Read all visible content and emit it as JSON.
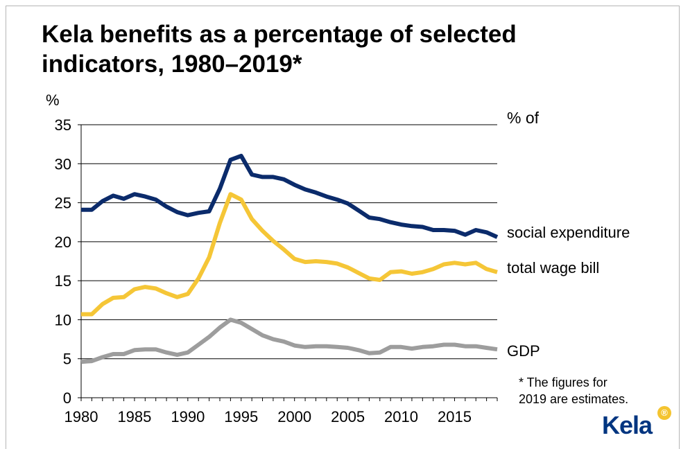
{
  "chart_data": {
    "type": "line",
    "title": "Kela benefits as a percentage of selected indicators, 1980–2019*",
    "ylabel": "%",
    "ylim": [
      0,
      35
    ],
    "yticks": [
      "0",
      "5",
      "10",
      "15",
      "20",
      "25",
      "30",
      "35"
    ],
    "xlim": [
      1980,
      2019
    ],
    "xticks": [
      "1980",
      "1985",
      "1990",
      "1995",
      "2000",
      "2005",
      "2010",
      "2015"
    ],
    "legend_heading": "% of",
    "footnote": [
      "* The figures for",
      "2019 are estimates."
    ],
    "x": [
      1980,
      1981,
      1982,
      1983,
      1984,
      1985,
      1986,
      1987,
      1988,
      1989,
      1990,
      1991,
      1992,
      1993,
      1994,
      1995,
      1996,
      1997,
      1998,
      1999,
      2000,
      2001,
      2002,
      2003,
      2004,
      2005,
      2006,
      2007,
      2008,
      2009,
      2010,
      2011,
      2012,
      2013,
      2014,
      2015,
      2016,
      2017,
      2018,
      2019
    ],
    "series": [
      {
        "name": "social expenditure",
        "color": "#0b2b6b",
        "values": [
          24.1,
          24.1,
          25.2,
          25.9,
          25.5,
          26.1,
          25.8,
          25.4,
          24.5,
          23.8,
          23.4,
          23.7,
          23.9,
          26.8,
          30.5,
          31.0,
          28.6,
          28.3,
          28.3,
          28.0,
          27.3,
          26.7,
          26.3,
          25.8,
          25.4,
          24.9,
          24.0,
          23.1,
          22.9,
          22.5,
          22.2,
          22.0,
          21.9,
          21.5,
          21.5,
          21.4,
          20.9,
          21.5,
          21.2,
          20.6
        ]
      },
      {
        "name": "total wage bill",
        "color": "#f5c637",
        "values": [
          10.7,
          10.7,
          12.0,
          12.8,
          12.9,
          13.9,
          14.2,
          14.0,
          13.4,
          12.9,
          13.3,
          15.3,
          18.0,
          22.4,
          26.1,
          25.4,
          22.9,
          21.4,
          20.1,
          19.0,
          17.8,
          17.4,
          17.5,
          17.4,
          17.2,
          16.7,
          16.0,
          15.3,
          15.1,
          16.1,
          16.2,
          15.9,
          16.1,
          16.5,
          17.1,
          17.3,
          17.1,
          17.3,
          16.5,
          16.1
        ]
      },
      {
        "name": "GDP",
        "color": "#9d9d9d",
        "values": [
          4.6,
          4.7,
          5.2,
          5.6,
          5.6,
          6.1,
          6.2,
          6.2,
          5.8,
          5.5,
          5.8,
          6.8,
          7.8,
          9.0,
          10.0,
          9.6,
          8.8,
          8.0,
          7.5,
          7.2,
          6.7,
          6.5,
          6.6,
          6.6,
          6.5,
          6.4,
          6.1,
          5.7,
          5.8,
          6.5,
          6.5,
          6.3,
          6.5,
          6.6,
          6.8,
          6.8,
          6.6,
          6.6,
          6.4,
          6.2
        ]
      }
    ]
  },
  "logo": {
    "text": "Kela",
    "badge": "®"
  }
}
